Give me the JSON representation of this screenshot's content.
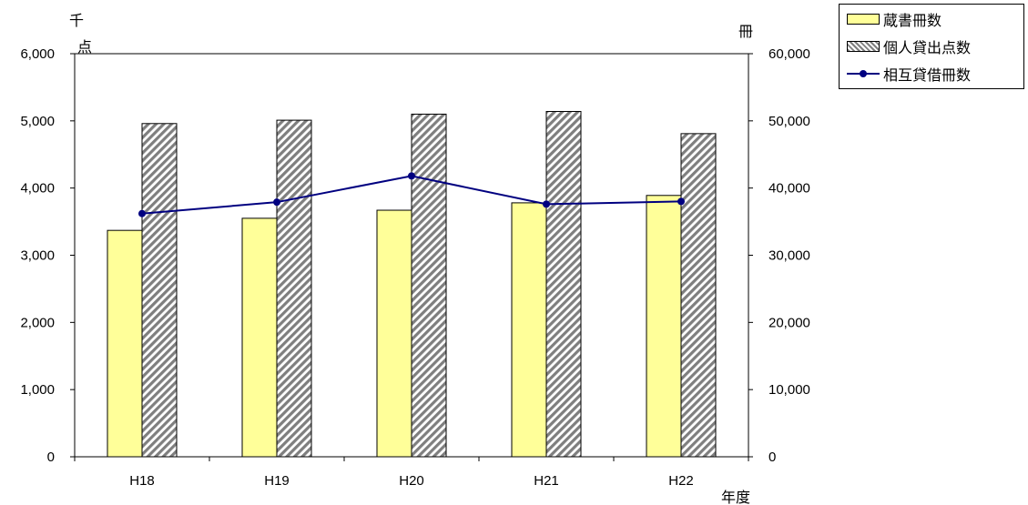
{
  "chart_data": {
    "type": "bar",
    "categories": [
      "H18",
      "H19",
      "H20",
      "H21",
      "H22"
    ],
    "series": [
      {
        "name": "蔵書冊数",
        "type": "bar",
        "axis": "left",
        "values": [
          3370,
          3550,
          3670,
          3780,
          3890
        ],
        "color": "#ffff99"
      },
      {
        "name": "個人貸出点数",
        "type": "bar",
        "axis": "left",
        "pattern": "diagonal-hatch",
        "values": [
          4960,
          5010,
          5100,
          5140,
          4810
        ],
        "color": "#888888"
      },
      {
        "name": "相互貸借冊数",
        "type": "line",
        "axis": "right",
        "values": [
          36200,
          37900,
          41800,
          37600,
          38000
        ],
        "color": "#000080"
      }
    ],
    "y_left": {
      "unit": "千点",
      "min": 0,
      "max": 6000,
      "ticks": [
        "0",
        "1,000",
        "2,000",
        "3,000",
        "4,000",
        "5,000",
        "6,000"
      ]
    },
    "y_right": {
      "unit": "冊",
      "min": 0,
      "max": 60000,
      "ticks": [
        "0",
        "10,000",
        "20,000",
        "30,000",
        "40,000",
        "50,000",
        "60,000"
      ]
    },
    "xlabel": "年度",
    "legend_position": "top-right",
    "grid": false
  }
}
